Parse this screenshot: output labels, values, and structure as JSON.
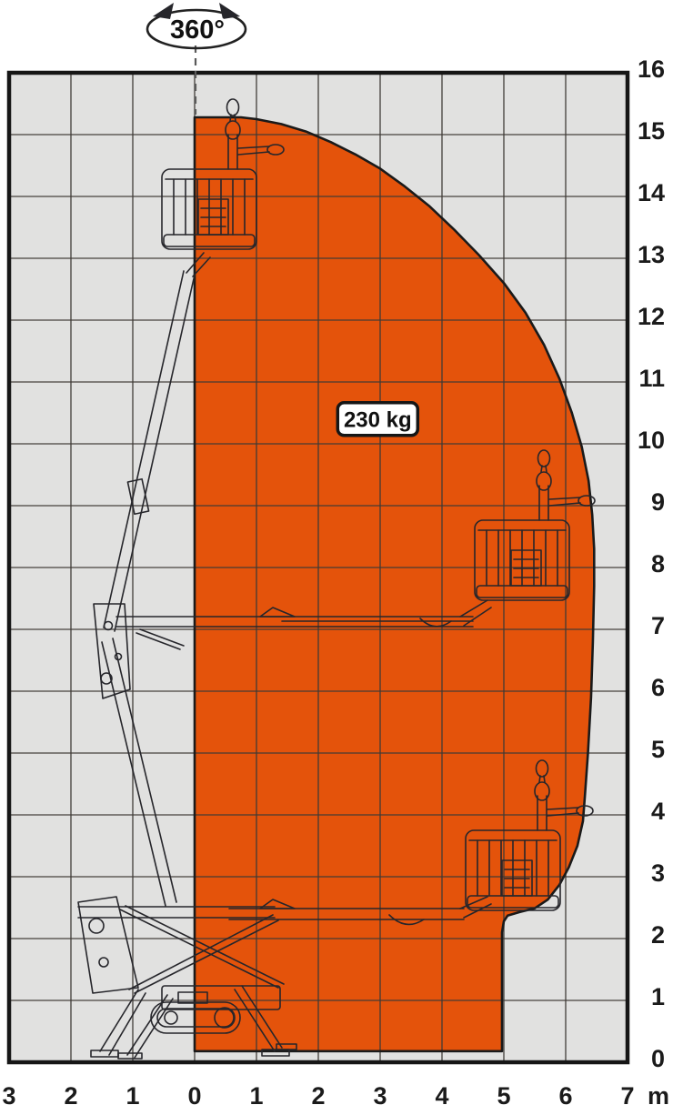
{
  "rotation_indicator": {
    "label": "360°"
  },
  "payload_badge": {
    "label": "230 kg"
  },
  "chart_data": {
    "type": "area",
    "title": "",
    "subtitle": "",
    "legend": [],
    "grid": true,
    "x_axis": {
      "unit_label": "m",
      "range_m": [
        -3,
        7
      ],
      "tick_values_m": [
        -3,
        -2,
        -1,
        0,
        1,
        2,
        3,
        4,
        5,
        6,
        7
      ],
      "tick_labels": [
        "3",
        "2",
        "1",
        "0",
        "1",
        "2",
        "3",
        "4",
        "5",
        "6",
        "7"
      ]
    },
    "y_axis": {
      "unit_label": "",
      "range_m": [
        0,
        16
      ],
      "tick_values_m": [
        0,
        1,
        2,
        3,
        4,
        5,
        6,
        7,
        8,
        9,
        10,
        11,
        12,
        13,
        14,
        15,
        16
      ],
      "tick_labels": [
        "0",
        "1",
        "2",
        "3",
        "4",
        "5",
        "6",
        "7",
        "8",
        "9",
        "10",
        "11",
        "12",
        "13",
        "14",
        "15",
        "16"
      ]
    },
    "envelope_polygon_m": [
      [
        0,
        0.18
      ],
      [
        0,
        15.28
      ],
      [
        0.75,
        15.28
      ],
      [
        1.0,
        15.25
      ],
      [
        1.4,
        15.17
      ],
      [
        1.8,
        15.05
      ],
      [
        2.2,
        14.88
      ],
      [
        2.6,
        14.68
      ],
      [
        3.0,
        14.45
      ],
      [
        3.4,
        14.16
      ],
      [
        3.8,
        13.84
      ],
      [
        4.2,
        13.46
      ],
      [
        4.6,
        13.05
      ],
      [
        5.0,
        12.6
      ],
      [
        5.35,
        12.12
      ],
      [
        5.65,
        11.6
      ],
      [
        5.9,
        11.05
      ],
      [
        6.1,
        10.5
      ],
      [
        6.26,
        9.95
      ],
      [
        6.37,
        9.4
      ],
      [
        6.43,
        8.85
      ],
      [
        6.46,
        8.3
      ],
      [
        6.46,
        7.7
      ],
      [
        6.44,
        6.8
      ],
      [
        6.41,
        5.9
      ],
      [
        6.36,
        5.0
      ],
      [
        6.31,
        4.3
      ],
      [
        6.28,
        3.9
      ],
      [
        6.19,
        3.5
      ],
      [
        6.05,
        3.15
      ],
      [
        5.9,
        2.87
      ],
      [
        5.71,
        2.63
      ],
      [
        5.5,
        2.49
      ],
      [
        5.26,
        2.43
      ],
      [
        5.06,
        2.37
      ],
      [
        5.0,
        2.28
      ],
      [
        4.97,
        2.1
      ],
      [
        4.97,
        0.18
      ]
    ],
    "annotations": {
      "payload": {
        "label": "230 kg",
        "center_m": [
          2.96,
          10.4
        ]
      },
      "rotation": {
        "label": "360°",
        "at_m": [
          0,
          16.6
        ]
      }
    },
    "colors": {
      "envelope_fill": "#e4530b",
      "plot_background": "#e1e1e0",
      "grid_line": "#3f3b36",
      "border": "#161616",
      "outline": "#1a1a1a",
      "label": "#1b1b1b",
      "badge_fill": "#ffffff"
    }
  }
}
